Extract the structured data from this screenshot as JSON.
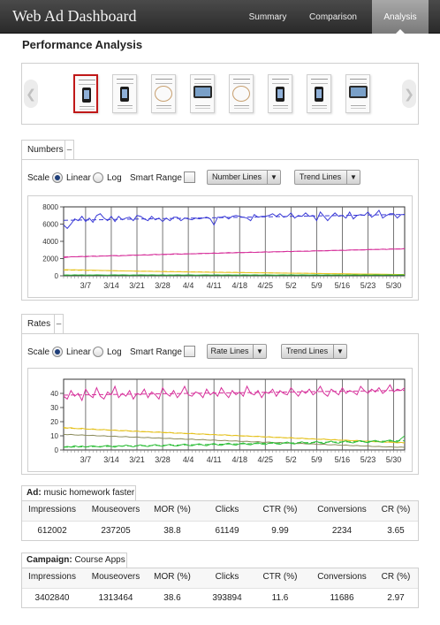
{
  "header": {
    "title": "Web Ad Dashboard",
    "tabs": [
      {
        "label": "Summary",
        "active": false
      },
      {
        "label": "Comparison",
        "active": false
      },
      {
        "label": "Analysis",
        "active": true
      }
    ]
  },
  "page_title": "Performance Analysis",
  "carousel": {
    "prev_icon": "chevron-left-icon",
    "next_icon": "chevron-right-icon",
    "thumbnails": [
      {
        "kind": "phone",
        "selected": true
      },
      {
        "kind": "phone",
        "selected": false
      },
      {
        "kind": "cable",
        "selected": false
      },
      {
        "kind": "tablet",
        "selected": false
      },
      {
        "kind": "cable",
        "selected": false
      },
      {
        "kind": "phone",
        "selected": false
      },
      {
        "kind": "phone",
        "selected": false
      },
      {
        "kind": "tablet",
        "selected": false
      }
    ]
  },
  "numbers_panel": {
    "tab_label": "Numbers",
    "collapse_label": "–",
    "scale_label": "Scale",
    "linear_label": "Linear",
    "log_label": "Log",
    "scale_selected": "Linear",
    "smart_range_label": "Smart Range",
    "smart_range_checked": false,
    "lines_dropdown": "Number Lines",
    "trend_dropdown": "Trend Lines"
  },
  "rates_panel": {
    "tab_label": "Rates",
    "collapse_label": "–",
    "scale_label": "Scale",
    "linear_label": "Linear",
    "log_label": "Log",
    "scale_selected": "Linear",
    "smart_range_label": "Smart Range",
    "smart_range_checked": false,
    "lines_dropdown": "Rate Lines",
    "trend_dropdown": "Trend Lines"
  },
  "chart_data": [
    {
      "type": "line",
      "title": "",
      "xlabel": "",
      "ylabel": "",
      "x_ticks": [
        "3/7",
        "3/14",
        "3/21",
        "3/28",
        "4/4",
        "4/11",
        "4/18",
        "4/25",
        "5/2",
        "5/9",
        "5/16",
        "5/23",
        "5/30"
      ],
      "y_ticks": [
        "0",
        "2000",
        "4000",
        "6000",
        "8000"
      ],
      "ylim": [
        0,
        8000
      ],
      "x_range_days": [
        0,
        93
      ],
      "grid": "vertical",
      "series": [
        {
          "color": "#3a3ad6",
          "trend": "dashed",
          "values": [
            5900,
            5500,
            6000,
            6600,
            6400,
            6900,
            6300,
            6700,
            6200,
            7000,
            7200,
            6700,
            6400,
            6900,
            6300,
            6900,
            6500,
            6700,
            6800,
            6400,
            7000,
            6900,
            6600,
            6400,
            6900,
            6500,
            6700,
            6300,
            6700,
            6400,
            6800,
            6800,
            6400,
            6700,
            6600,
            6500,
            6700,
            6600,
            6700,
            6800,
            6600,
            5900,
            6800,
            6800,
            6900,
            6600,
            6900,
            7000,
            6900,
            6800,
            6700,
            6400,
            7100,
            6800,
            6900,
            6900,
            7000,
            7200,
            6900,
            7200,
            6800,
            6900,
            7300,
            6700,
            7000,
            6900,
            7300,
            6900,
            7000,
            6400,
            7400,
            6900,
            6400,
            6900,
            7300,
            6900,
            7000,
            6700,
            7400,
            6600,
            7000,
            7100,
            7000,
            7400,
            6800,
            7100,
            7600,
            6700,
            7000,
            7200,
            7200,
            6700,
            7100,
            7100
          ]
        },
        {
          "color": "#d62f9a",
          "trend": "dashed",
          "values": [
            2100,
            2150,
            2200,
            2200,
            2200,
            2250,
            2200,
            2250,
            2300,
            2250,
            2300,
            2300,
            2300,
            2350,
            2350,
            2300,
            2350,
            2350,
            2400,
            2400,
            2400,
            2400,
            2450,
            2400,
            2450,
            2500,
            2450,
            2500,
            2500,
            2500,
            2550,
            2550,
            2500,
            2550,
            2550,
            2550,
            2550,
            2600,
            2600,
            2600,
            2600,
            2650,
            2600,
            2650,
            2650,
            2700,
            2650,
            2700,
            2700,
            2700,
            2700,
            2750,
            2700,
            2750,
            2750,
            2800,
            2750,
            2800,
            2800,
            2800,
            2800,
            2850,
            2800,
            2850,
            2850,
            2850,
            2850,
            2850,
            2900,
            2900,
            2900,
            2900,
            2900,
            2950,
            2950,
            2950,
            2950,
            2950,
            3000,
            3000,
            3000,
            3000,
            3000,
            3050,
            3050,
            3050,
            3050,
            3100,
            3050,
            3100,
            3100,
            3100,
            3100,
            3150
          ]
        },
        {
          "color": "#e5c21f",
          "trend": "dashed",
          "values": [
            700,
            720,
            690,
            700,
            680,
            690,
            670,
            660,
            650,
            640,
            630,
            620,
            610,
            600,
            590,
            580,
            570,
            560,
            560,
            550,
            540,
            530,
            520,
            520,
            510,
            500,
            500,
            490,
            480,
            480,
            470,
            460,
            460,
            450,
            450,
            440,
            430,
            430,
            420,
            420,
            410,
            410,
            400,
            400,
            390,
            390,
            380,
            380,
            370,
            370,
            360,
            360,
            350,
            350,
            340,
            340,
            330,
            330,
            320,
            320,
            310,
            310,
            300,
            300,
            300,
            290,
            290,
            280,
            280,
            270,
            270,
            260,
            260,
            250,
            250,
            240,
            240,
            230,
            230,
            220,
            220,
            210,
            210,
            200,
            200,
            190,
            190,
            180,
            180,
            170,
            170,
            160,
            160,
            150
          ]
        },
        {
          "color": "#2fbf3a",
          "trend": "none",
          "values": [
            90,
            100,
            80,
            110,
            90,
            120,
            80,
            100,
            90,
            110,
            100,
            90,
            80,
            100,
            110,
            90,
            120,
            100,
            80,
            100,
            90,
            110,
            100,
            90,
            120,
            100,
            90,
            110,
            80,
            100,
            90,
            120,
            100,
            90,
            110,
            100,
            80,
            90,
            100,
            110,
            90,
            100,
            120,
            90,
            100,
            110,
            90,
            100,
            80,
            110,
            100,
            90,
            120,
            100,
            90,
            110,
            100,
            90,
            80,
            100,
            110,
            90,
            120,
            100,
            90,
            110,
            100,
            90,
            100,
            110,
            90,
            100,
            120,
            90,
            100,
            110,
            80,
            100,
            90,
            110,
            100,
            90,
            120,
            100,
            90,
            110,
            100,
            90,
            100,
            110,
            90,
            100,
            120,
            100
          ]
        }
      ]
    },
    {
      "type": "line",
      "title": "",
      "xlabel": "",
      "ylabel": "",
      "x_ticks": [
        "3/7",
        "3/14",
        "3/21",
        "3/28",
        "4/4",
        "4/11",
        "4/18",
        "4/25",
        "5/2",
        "5/9",
        "5/16",
        "5/23",
        "5/30"
      ],
      "y_ticks": [
        "0",
        "10",
        "20",
        "30",
        "40"
      ],
      "ylim": [
        0,
        50
      ],
      "x_range_days": [
        0,
        93
      ],
      "grid": "vertical",
      "series": [
        {
          "color": "#d62f9a",
          "trend": "dashed",
          "values": [
            38,
            36,
            42,
            38,
            40,
            35,
            43,
            39,
            37,
            44,
            38,
            36,
            41,
            39,
            45,
            37,
            40,
            38,
            42,
            36,
            40,
            39,
            43,
            37,
            41,
            39,
            36,
            44,
            40,
            38,
            42,
            37,
            40,
            45,
            39,
            38,
            41,
            40,
            37,
            43,
            39,
            41,
            38,
            44,
            40,
            37,
            42,
            39,
            41,
            38,
            45,
            40,
            39,
            42,
            37,
            41,
            40,
            43,
            38,
            42,
            40,
            39,
            44,
            41,
            38,
            42,
            40,
            43,
            39,
            41,
            45,
            40,
            38,
            43,
            41,
            39,
            44,
            40,
            42,
            41,
            39,
            45,
            42,
            40,
            43,
            41,
            44,
            40,
            42,
            46,
            41,
            43,
            42,
            44
          ]
        },
        {
          "color": "#e5c21f",
          "trend": "dashed",
          "values": [
            16,
            15.5,
            15.8,
            15.2,
            15,
            15.4,
            14.8,
            14.6,
            14.9,
            14.4,
            14.2,
            14.5,
            14,
            13.8,
            14.1,
            13.6,
            13.5,
            13.8,
            13.3,
            13.1,
            13.4,
            12.9,
            12.8,
            13,
            12.6,
            12.5,
            12.8,
            12.3,
            12.1,
            12.4,
            11.9,
            11.8,
            12,
            11.6,
            11.5,
            11.8,
            11.3,
            11.1,
            11.4,
            10.9,
            10.8,
            11,
            10.6,
            10.5,
            10.8,
            10.3,
            10.1,
            10.4,
            9.9,
            9.8,
            10,
            9.6,
            9.5,
            9.8,
            9.3,
            9.1,
            9.4,
            8.9,
            8.8,
            9,
            8.6,
            8.5,
            8.8,
            8.3,
            8.1,
            8.4,
            7.9,
            7.8,
            8,
            7.6,
            7.5,
            7.8,
            7.3,
            7.1,
            7.4,
            6.9,
            6.8,
            7,
            6.6,
            6.5,
            6.8,
            6.3,
            6.1,
            6.4,
            5.9,
            5.8,
            6,
            5.6,
            5.5,
            5.8,
            5.3,
            5.1,
            5.4,
            5
          ]
        },
        {
          "color": "#8a8a5a",
          "trend": "none",
          "values": [
            11,
            10.8,
            11,
            10.6,
            10.5,
            10.7,
            10.3,
            10.2,
            10.4,
            10,
            9.9,
            10.1,
            9.7,
            9.6,
            9.8,
            9.4,
            9.3,
            9.5,
            9.1,
            9,
            9.2,
            8.8,
            8.7,
            8.9,
            8.5,
            8.4,
            8.6,
            8.2,
            8.1,
            8.3,
            7.9,
            7.8,
            8,
            7.6,
            7.5,
            7.7,
            7.3,
            7.2,
            7.4,
            7,
            6.9,
            7.1,
            6.7,
            6.6,
            6.8,
            6.4,
            6.3,
            6.5,
            6.1,
            6,
            6.2,
            5.8,
            5.7,
            5.9,
            5.5,
            5.4,
            5.6,
            5.2,
            5.1,
            5.3,
            4.9,
            4.8,
            5,
            4.6,
            4.5,
            4.7,
            4.3,
            4.2,
            4.4,
            4,
            3.9,
            4.1,
            3.7,
            3.6,
            3.8,
            3.4,
            3.3,
            3.5,
            3.1,
            3,
            3.2,
            2.8,
            2.7,
            2.9,
            2.5,
            2.4,
            2.6,
            2.2,
            2.1,
            2.3,
            2,
            1.9,
            2.1,
            1.8
          ]
        },
        {
          "color": "#2fbf3a",
          "trend": "dashed",
          "values": [
            2,
            2.5,
            2,
            3,
            2.2,
            2.8,
            2,
            2.6,
            3,
            2.4,
            2,
            2.8,
            3.2,
            2.5,
            2,
            3,
            2.6,
            3.4,
            2.8,
            2.2,
            3,
            3.6,
            2.8,
            2.4,
            3.2,
            3.8,
            3,
            2.6,
            3.4,
            4,
            3,
            2.8,
            3.6,
            4.2,
            3.2,
            3,
            3.8,
            4.4,
            3.4,
            3,
            4,
            4.6,
            3.6,
            3.2,
            4.2,
            4.8,
            3.8,
            3.4,
            4.4,
            5,
            4,
            3.6,
            4.6,
            5.2,
            4.2,
            3.8,
            4.8,
            5.4,
            4.4,
            4,
            5,
            5.6,
            4.6,
            4.2,
            5.2,
            5.8,
            4.8,
            4.4,
            5.4,
            6,
            5,
            4.6,
            5.6,
            6.2,
            5.2,
            4.8,
            5.8,
            6.4,
            5.4,
            5,
            6,
            6.6,
            5.6,
            5.2,
            6.2,
            6.8,
            5.8,
            5.4,
            6.4,
            7,
            6,
            5.6,
            8,
            10
          ]
        }
      ]
    }
  ],
  "ad_stats": {
    "label": "Ad:",
    "name": "music homework faster",
    "headers": [
      "Impressions",
      "Mouseovers",
      "MOR (%)",
      "Clicks",
      "CTR (%)",
      "Conversions",
      "CR (%)"
    ],
    "values": [
      "612002",
      "237205",
      "38.8",
      "61149",
      "9.99",
      "2234",
      "3.65"
    ]
  },
  "campaign_stats": {
    "label": "Campaign:",
    "name": "Course Apps",
    "headers": [
      "Impressions",
      "Mouseovers",
      "MOR (%)",
      "Clicks",
      "CTR (%)",
      "Conversions",
      "CR (%)"
    ],
    "values": [
      "3402840",
      "1313464",
      "38.6",
      "393894",
      "11.6",
      "11686",
      "2.97"
    ]
  }
}
